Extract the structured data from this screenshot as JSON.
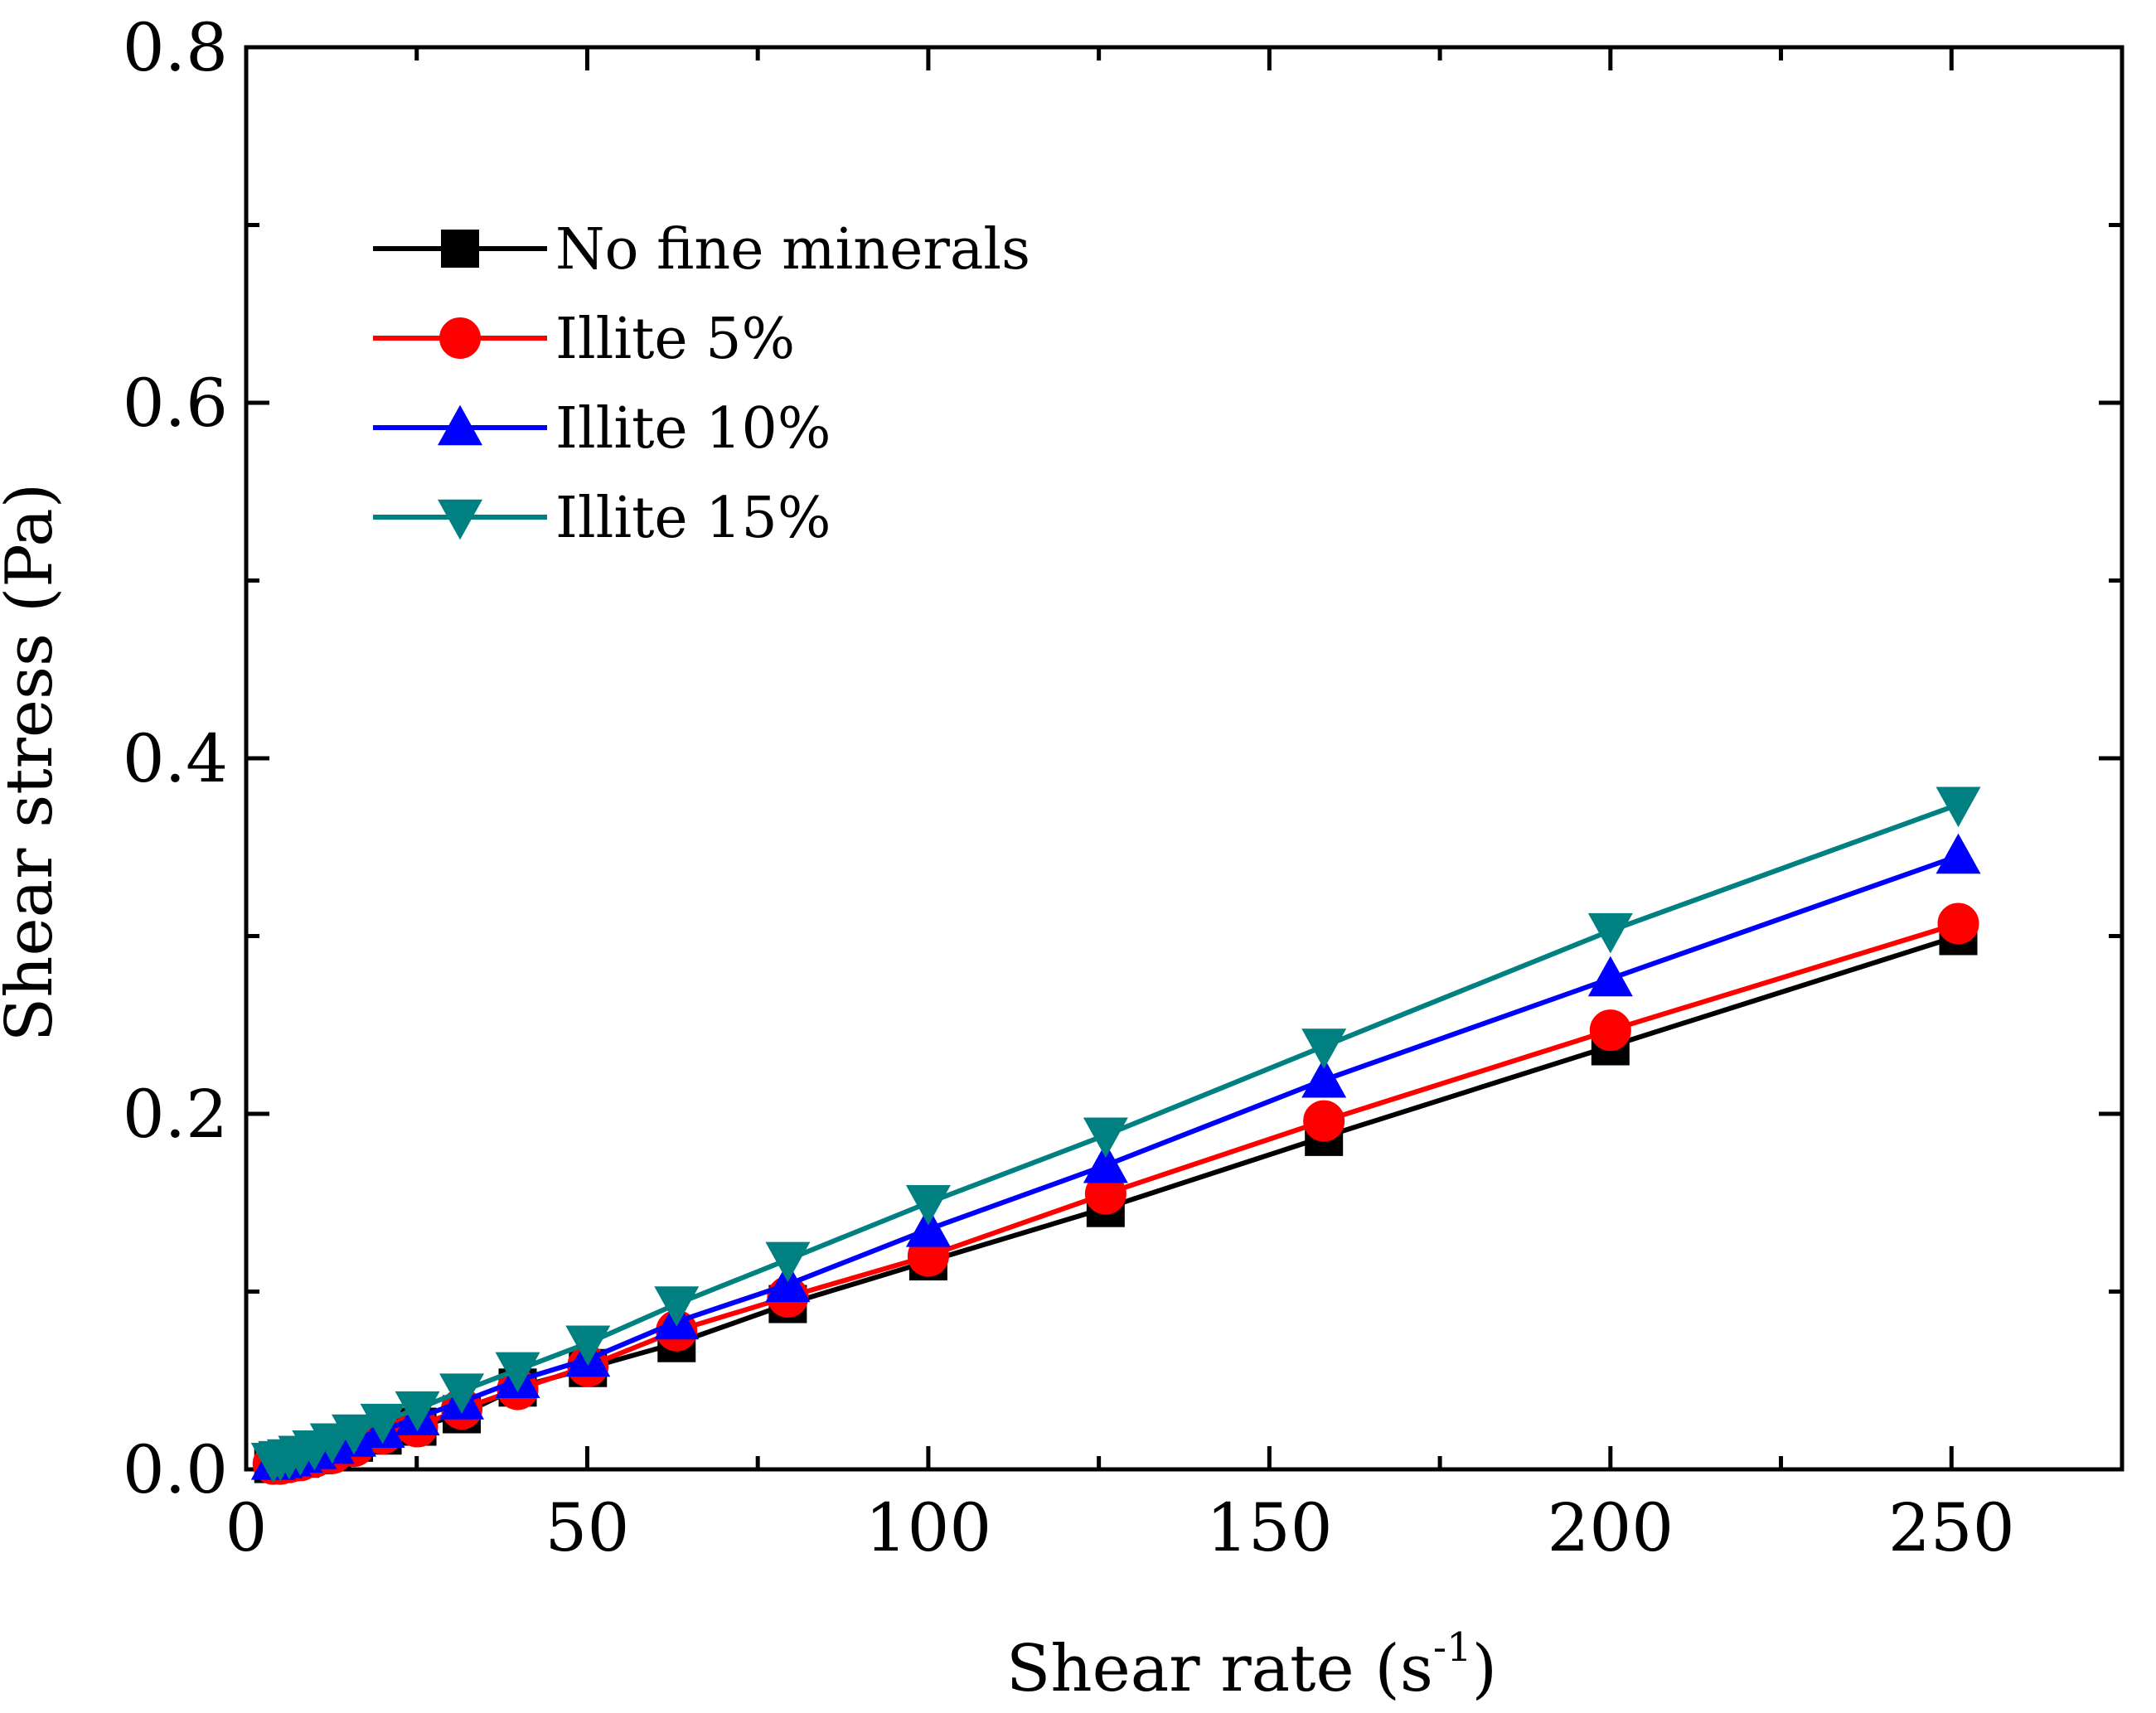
{
  "chart_data": {
    "type": "line",
    "title": "",
    "xlabel": "Shear rate (s",
    "xlabel_sup": "-1",
    "xlabel_tail": ")",
    "ylabel": "Shear stress (Pa)",
    "xlim": [
      0,
      275
    ],
    "ylim": [
      0,
      0.8
    ],
    "x_ticks": [
      0,
      50,
      100,
      150,
      200,
      250
    ],
    "x_tick_labels": [
      "0",
      "50",
      "100",
      "150",
      "200",
      "250"
    ],
    "y_ticks": [
      0.0,
      0.2,
      0.4,
      0.6,
      0.8
    ],
    "y_tick_labels": [
      "0.0",
      "0.2",
      "0.4",
      "0.6",
      "0.8"
    ],
    "grid": false,
    "legend_position": "top-left",
    "x": [
      3.98,
      5.01,
      6.31,
      7.94,
      10.0,
      12.6,
      15.8,
      20.0,
      25.1,
      31.6,
      39.8,
      50.1,
      63.1,
      79.4,
      100.0,
      126.0,
      158.0,
      200.0,
      251.0
    ],
    "series": [
      {
        "name": "No fine minerals",
        "color": "#000000",
        "marker": "square",
        "values": [
          0.003,
          0.004,
          0.005,
          0.006,
          0.008,
          0.011,
          0.015,
          0.019,
          0.024,
          0.031,
          0.046,
          0.057,
          0.071,
          0.093,
          0.117,
          0.147,
          0.187,
          0.238,
          0.3
        ]
      },
      {
        "name": "Illite 5%",
        "color": "#ff0000",
        "marker": "circle",
        "values": [
          0.003,
          0.003,
          0.004,
          0.005,
          0.007,
          0.009,
          0.013,
          0.02,
          0.024,
          0.034,
          0.045,
          0.058,
          0.078,
          0.097,
          0.12,
          0.155,
          0.196,
          0.247,
          0.307
        ]
      },
      {
        "name": "Illite 10%",
        "color": "#0000ff",
        "marker": "triangle-up",
        "values": [
          0.004,
          0.005,
          0.006,
          0.008,
          0.01,
          0.013,
          0.017,
          0.022,
          0.029,
          0.038,
          0.05,
          0.062,
          0.083,
          0.104,
          0.135,
          0.171,
          0.219,
          0.276,
          0.345
        ]
      },
      {
        "name": "Illite 15%",
        "color": "#008080",
        "marker": "triangle-down",
        "values": [
          0.005,
          0.006,
          0.007,
          0.009,
          0.012,
          0.016,
          0.021,
          0.027,
          0.034,
          0.044,
          0.056,
          0.071,
          0.093,
          0.118,
          0.15,
          0.188,
          0.238,
          0.303,
          0.374
        ]
      }
    ]
  }
}
